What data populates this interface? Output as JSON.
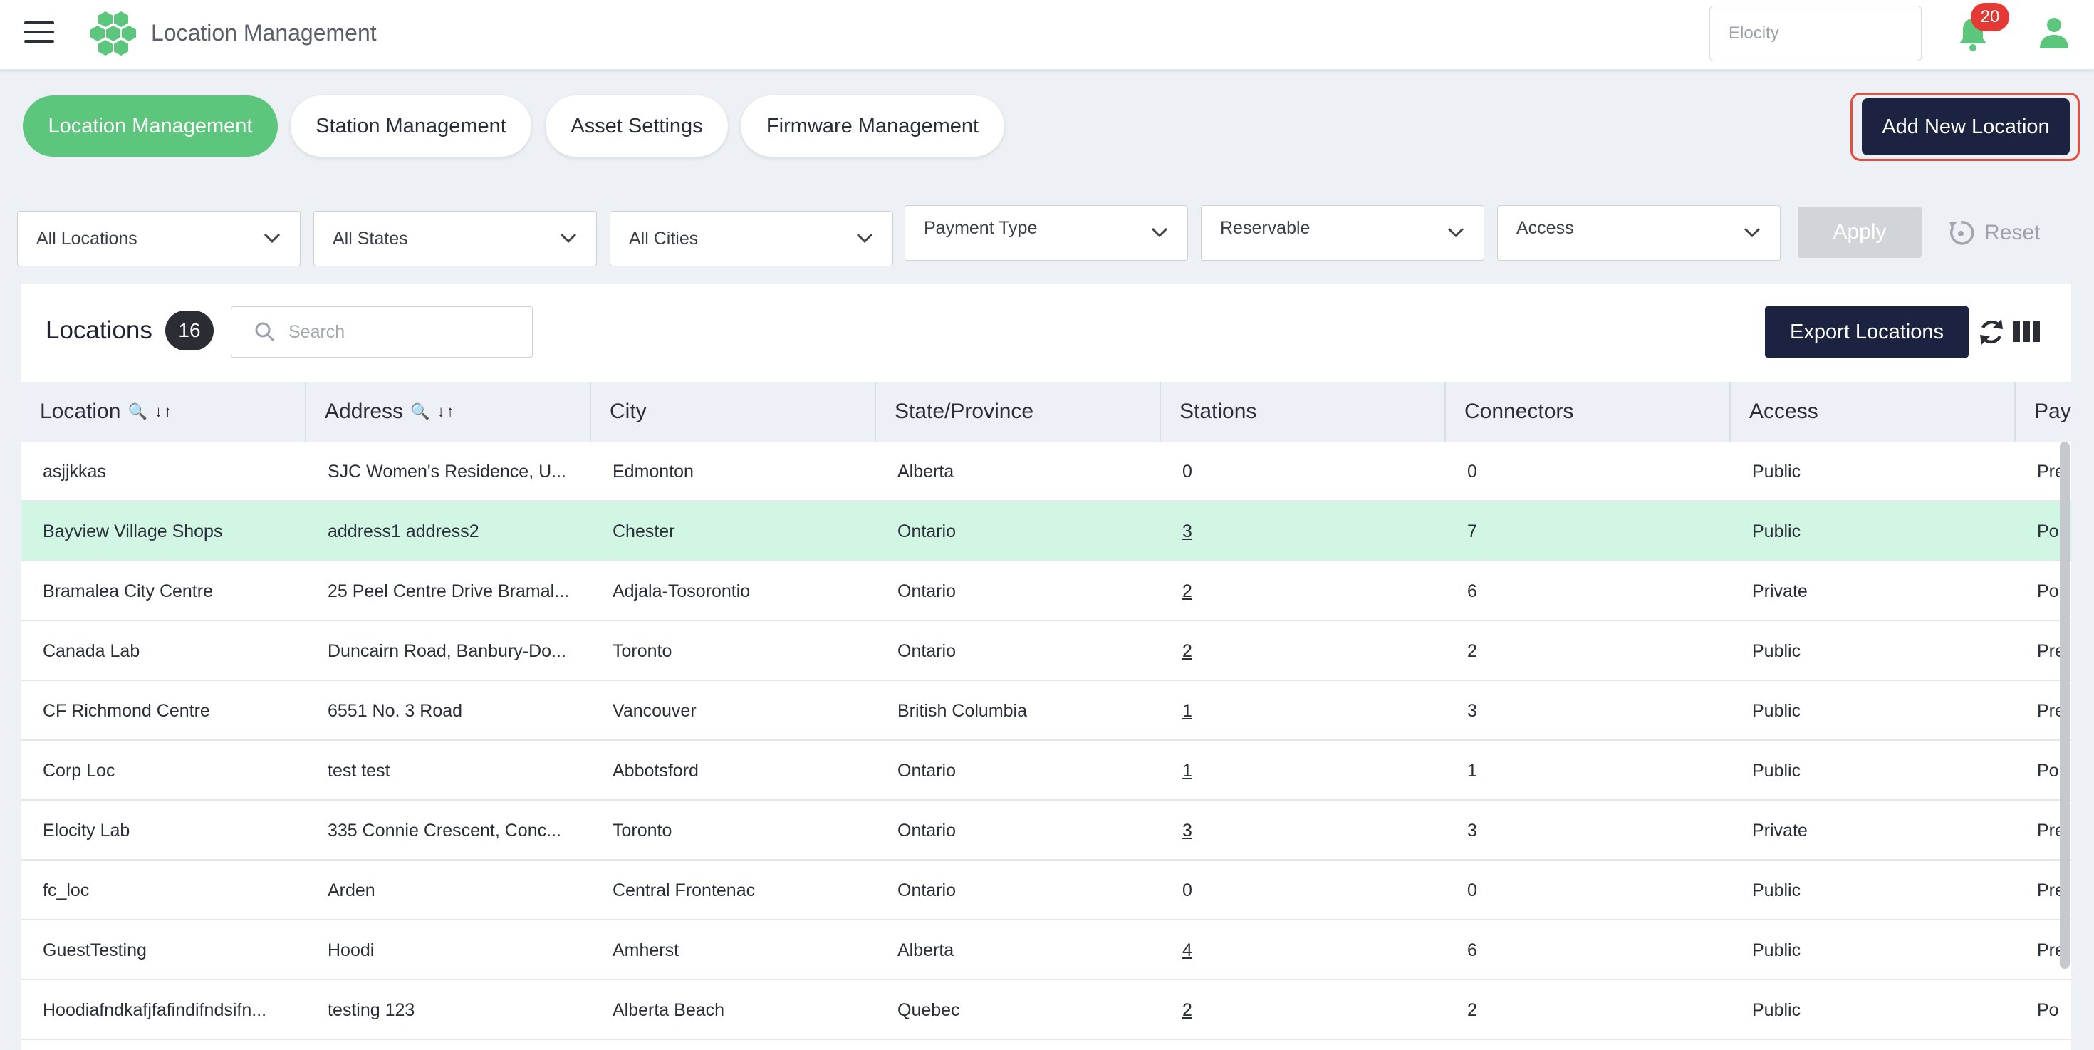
{
  "header": {
    "title": "Location Management",
    "tenant_value": "Elocity",
    "notification_count": "20"
  },
  "tabs": [
    {
      "label": "Location Management",
      "active": true
    },
    {
      "label": "Station Management",
      "active": false
    },
    {
      "label": "Asset Settings",
      "active": false
    },
    {
      "label": "Firmware Management",
      "active": false
    }
  ],
  "add_location_label": "Add New Location",
  "filters": {
    "locations": "All Locations",
    "states": "All States",
    "cities": "All Cities",
    "payment_type": "Payment Type",
    "reservable": "Reservable",
    "access": "Access",
    "apply_label": "Apply",
    "reset_label": "Reset"
  },
  "table_card": {
    "title": "Locations",
    "count": "16",
    "search_placeholder": "Search",
    "export_label": "Export Locations"
  },
  "columns": [
    {
      "label": "Location",
      "tools": "🔍 ↓↑"
    },
    {
      "label": "Address",
      "tools": "🔍 ↓↑"
    },
    {
      "label": "City",
      "tools": ""
    },
    {
      "label": "State/Province",
      "tools": ""
    },
    {
      "label": "Stations",
      "tools": ""
    },
    {
      "label": "Connectors",
      "tools": ""
    },
    {
      "label": "Access",
      "tools": ""
    },
    {
      "label": "Pay",
      "tools": ""
    }
  ],
  "rows": [
    {
      "location": "asjjkkas",
      "address": "SJC Women's Residence, U...",
      "city": "Edmonton",
      "state": "Alberta",
      "stations": "0",
      "connectors": "0",
      "access": "Public",
      "pay": "Pre"
    },
    {
      "location": "Bayview Village Shops",
      "address": "address1 address2",
      "city": "Chester",
      "state": "Ontario",
      "stations": "3",
      "connectors": "7",
      "access": "Public",
      "pay": "Po"
    },
    {
      "location": "Bramalea City Centre",
      "address": "25 Peel Centre Drive Bramal...",
      "city": "Adjala-Tosorontio",
      "state": "Ontario",
      "stations": "2",
      "connectors": "6",
      "access": "Private",
      "pay": "Po"
    },
    {
      "location": "Canada Lab",
      "address": "Duncairn Road, Banbury-Do...",
      "city": "Toronto",
      "state": "Ontario",
      "stations": "2",
      "connectors": "2",
      "access": "Public",
      "pay": "Pre"
    },
    {
      "location": "CF Richmond Centre",
      "address": "6551 No. 3 Road",
      "city": "Vancouver",
      "state": "British Columbia",
      "stations": "1",
      "connectors": "3",
      "access": "Public",
      "pay": "Pre"
    },
    {
      "location": "Corp Loc",
      "address": "test test",
      "city": "Abbotsford",
      "state": "Ontario",
      "stations": "1",
      "connectors": "1",
      "access": "Public",
      "pay": "Po"
    },
    {
      "location": "Elocity Lab",
      "address": "335 Connie Crescent, Conc...",
      "city": "Toronto",
      "state": "Ontario",
      "stations": "3",
      "connectors": "3",
      "access": "Private",
      "pay": "Pre"
    },
    {
      "location": "fc_loc",
      "address": "Arden",
      "city": "Central Frontenac",
      "state": "Ontario",
      "stations": "0",
      "connectors": "0",
      "access": "Public",
      "pay": "Pre"
    },
    {
      "location": "GuestTesting",
      "address": "Hoodi",
      "city": "Amherst",
      "state": "Alberta",
      "stations": "4",
      "connectors": "6",
      "access": "Public",
      "pay": "Pre"
    },
    {
      "location": "Hoodiafndkafjfafindifndsifn...",
      "address": "testing 123",
      "city": "Alberta Beach",
      "state": "Quebec",
      "stations": "2",
      "connectors": "2",
      "access": "Public",
      "pay": "Po"
    }
  ],
  "selected_row_index": 1,
  "colors": {
    "accent_green": "#5cc77c",
    "primary_navy": "#1c2340",
    "highlight_outline": "#e74c3c",
    "selected_row": "#d1f7e4"
  },
  "icons": [
    "menu-icon",
    "app-logo",
    "bell-icon",
    "user-icon",
    "chevron-down-icon",
    "reset-icon",
    "search-icon",
    "refresh-icon",
    "columns-icon"
  ]
}
